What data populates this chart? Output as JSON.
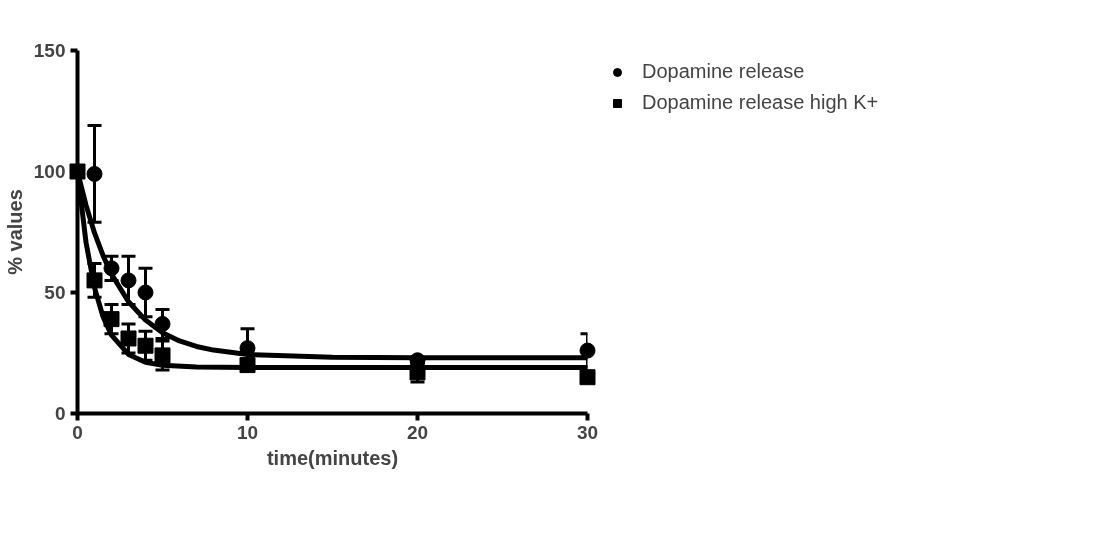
{
  "chart_data": {
    "type": "scatter",
    "xlabel": "time(minutes)",
    "ylabel": "% values",
    "x": [
      0,
      1,
      2,
      3,
      4,
      5,
      10,
      20,
      30
    ],
    "xlim": [
      0,
      30
    ],
    "xticks": [
      0,
      10,
      20,
      30
    ],
    "ylim": [
      0,
      150
    ],
    "yticks": [
      0,
      50,
      100,
      150
    ],
    "grid": false,
    "legend": "top right",
    "series": [
      {
        "name": "Dopamine release",
        "marker": "circle",
        "color": "#000000",
        "values": [
          null,
          99,
          60,
          55,
          50,
          37,
          27,
          22,
          26
        ],
        "errors": [
          null,
          20,
          5,
          10,
          10,
          6,
          8,
          1,
          7
        ]
      },
      {
        "name": "Dopamine release high K+",
        "marker": "square",
        "color": "#000000",
        "values": [
          100,
          55,
          39,
          31,
          28,
          24,
          20,
          17,
          15
        ],
        "errors": [
          null,
          7,
          6,
          6,
          6,
          6,
          2,
          4,
          2
        ]
      },
      {
        "type": "line",
        "marker": "none",
        "color": "#000000",
        "x": [
          0,
          0.5,
          1,
          1.5,
          2,
          3,
          4,
          5,
          6,
          7,
          8,
          10,
          15,
          20,
          30
        ],
        "values": [
          100,
          86.1,
          74.6,
          65.3,
          57.6,
          46.2,
          38.6,
          33.4,
          30.0,
          27.7,
          26.2,
          24.4,
          23.2,
          23,
          23
        ]
      },
      {
        "type": "line",
        "marker": "none",
        "color": "#000000",
        "x": [
          0,
          0.5,
          1,
          1.5,
          2,
          3,
          4,
          5,
          7,
          10,
          30
        ],
        "values": [
          100,
          70.7,
          52.0,
          40.0,
          32.4,
          24.4,
          21.2,
          19.9,
          19.2,
          19,
          19
        ]
      }
    ]
  }
}
